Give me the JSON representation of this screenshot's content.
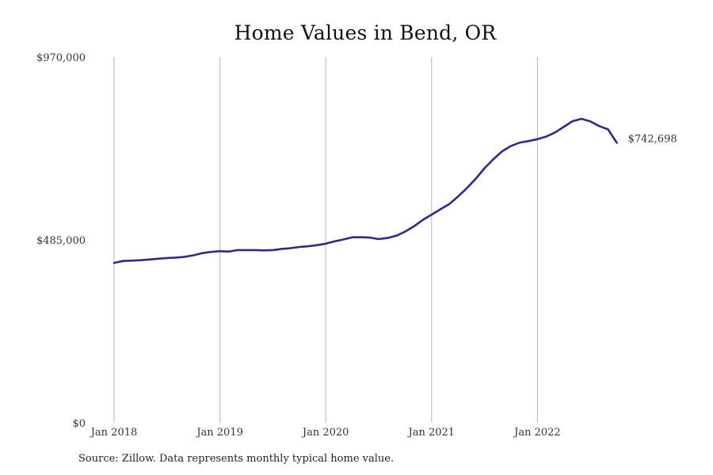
{
  "chart_data": {
    "type": "line",
    "title": "Home Values in Bend, OR",
    "xlabel": "",
    "ylabel": "",
    "source": "Source: Zillow. Data represents monthly typical home value.",
    "y_ticks": [
      {
        "value": 0,
        "label": "$0"
      },
      {
        "value": 485000,
        "label": "$485,000"
      },
      {
        "value": 970000,
        "label": "$970,000"
      }
    ],
    "x_ticks": [
      {
        "value": "2018-01",
        "label": "Jan 2018"
      },
      {
        "value": "2019-01",
        "label": "Jan 2019"
      },
      {
        "value": "2020-01",
        "label": "Jan 2020"
      },
      {
        "value": "2021-01",
        "label": "Jan 2021"
      },
      {
        "value": "2022-01",
        "label": "Jan 2022"
      }
    ],
    "ylim": [
      0,
      970000
    ],
    "xlim": [
      "2018-01",
      "2023-01"
    ],
    "grid": "vertical",
    "series": [
      {
        "color": "#2e2a8c",
        "end_label": "$742,698",
        "x": [
          "2018-01",
          "2018-02",
          "2018-03",
          "2018-04",
          "2018-05",
          "2018-06",
          "2018-07",
          "2018-08",
          "2018-09",
          "2018-10",
          "2018-11",
          "2018-12",
          "2019-01",
          "2019-02",
          "2019-03",
          "2019-04",
          "2019-05",
          "2019-06",
          "2019-07",
          "2019-08",
          "2019-09",
          "2019-10",
          "2019-11",
          "2019-12",
          "2020-01",
          "2020-02",
          "2020-03",
          "2020-04",
          "2020-05",
          "2020-06",
          "2020-07",
          "2020-08",
          "2020-09",
          "2020-10",
          "2020-11",
          "2020-12",
          "2021-01",
          "2021-02",
          "2021-03",
          "2021-04",
          "2021-05",
          "2021-06",
          "2021-07",
          "2021-08",
          "2021-09",
          "2021-10",
          "2021-11",
          "2021-12",
          "2022-01",
          "2022-02",
          "2022-03",
          "2022-04",
          "2022-05",
          "2022-06",
          "2022-07",
          "2022-08",
          "2022-09",
          "2022-10"
        ],
        "values": [
          424000,
          429000,
          430000,
          431000,
          433000,
          435000,
          437000,
          438000,
          440000,
          444000,
          450000,
          453000,
          455000,
          454000,
          458000,
          458000,
          458000,
          457000,
          458000,
          461000,
          463000,
          466000,
          468000,
          471000,
          475000,
          481000,
          486000,
          492000,
          492000,
          491000,
          487000,
          490000,
          496000,
          507000,
          521000,
          538000,
          552000,
          566000,
          580000,
          600000,
          622000,
          647000,
          675000,
          699000,
          720000,
          734000,
          743000,
          747000,
          752000,
          759000,
          770000,
          785000,
          800000,
          806000,
          799000,
          787000,
          778000,
          742698
        ]
      }
    ]
  }
}
